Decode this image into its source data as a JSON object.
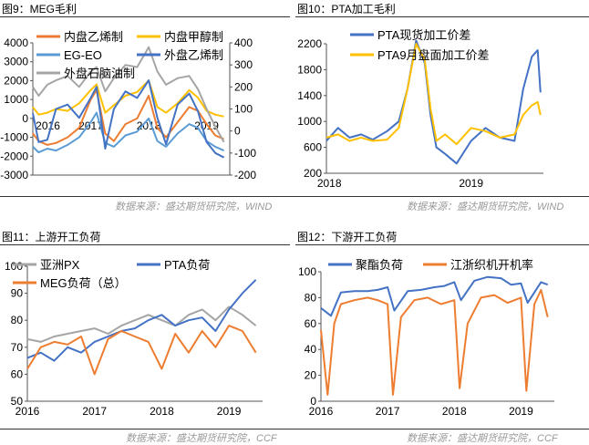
{
  "panels": [
    {
      "title": "图9：MEG毛利"
    },
    {
      "title": "图10：PTA加工毛利"
    },
    {
      "title": "图11：上游开工负荷"
    },
    {
      "title": "图12：下游开工负荷"
    }
  ],
  "sources": {
    "top": "数据来源：盛达期货研究院，WIND",
    "bottom": "数据来源：盛达期货研究院，CCF"
  },
  "chart_data": [
    {
      "type": "line",
      "title": "",
      "xlabel": "",
      "ylabel": "",
      "x_ticks": [
        "2016",
        "2017",
        "2018",
        "2019"
      ],
      "y_left": {
        "min": -3000,
        "max": 4000,
        "ticks": [
          -3000,
          -2000,
          -1000,
          0,
          1000,
          2000,
          3000,
          4000
        ]
      },
      "y_right": {
        "min": -200,
        "max": 400,
        "ticks": [
          -200,
          -100,
          0,
          100,
          200,
          300,
          400
        ]
      },
      "legend": "top",
      "series": [
        {
          "name": "内盘乙烯制",
          "color": "#ed7d31",
          "axis": "left",
          "x": [
            2016.0,
            2016.1,
            2016.25,
            2016.4,
            2016.6,
            2016.8,
            2017.0,
            2017.1,
            2017.25,
            2017.4,
            2017.6,
            2017.8,
            2018.0,
            2018.15,
            2018.3,
            2018.5,
            2018.7,
            2018.85,
            2019.0,
            2019.15,
            2019.3
          ],
          "values": [
            -800,
            -1200,
            -1400,
            -1300,
            -1000,
            -500,
            1000,
            1500,
            -800,
            -1200,
            -300,
            0,
            1200,
            -500,
            -1000,
            -200,
            600,
            400,
            -300,
            -900,
            -1100
          ]
        },
        {
          "name": "内盘甲醇制",
          "color": "#ffc000",
          "axis": "left",
          "x": [
            2016.0,
            2016.1,
            2016.25,
            2016.4,
            2016.6,
            2016.8,
            2017.0,
            2017.1,
            2017.25,
            2017.4,
            2017.6,
            2017.8,
            2018.0,
            2018.15,
            2018.3,
            2018.5,
            2018.7,
            2018.85,
            2019.0,
            2019.15,
            2019.3
          ],
          "values": [
            600,
            200,
            300,
            500,
            400,
            800,
            1500,
            1800,
            300,
            700,
            1200,
            1400,
            2000,
            600,
            300,
            800,
            1500,
            1100,
            400,
            200,
            100
          ]
        },
        {
          "name": "EG-EO",
          "color": "#5b9bd5",
          "axis": "left",
          "x": [
            2016.0,
            2016.1,
            2016.25,
            2016.4,
            2016.6,
            2016.8,
            2017.0,
            2017.1,
            2017.25,
            2017.4,
            2017.6,
            2017.8,
            2018.0,
            2018.15,
            2018.3,
            2018.5,
            2018.7,
            2018.85,
            2019.0,
            2019.15,
            2019.3
          ],
          "values": [
            -1500,
            -1800,
            -1600,
            -1700,
            -1400,
            -1000,
            -200,
            300,
            -1300,
            -1500,
            -900,
            -700,
            0,
            -1200,
            -1500,
            -800,
            -300,
            -500,
            -1200,
            -1500,
            -1700
          ]
        },
        {
          "name": "外盘乙烯制",
          "color": "#4472c4",
          "axis": "right",
          "x": [
            2016.0,
            2016.1,
            2016.25,
            2016.4,
            2016.6,
            2016.8,
            2017.0,
            2017.1,
            2017.25,
            2017.4,
            2017.6,
            2017.8,
            2018.0,
            2018.15,
            2018.3,
            2018.5,
            2018.7,
            2018.85,
            2019.0,
            2019.15,
            2019.3
          ],
          "values": [
            80,
            -50,
            -40,
            100,
            120,
            60,
            150,
            200,
            -80,
            100,
            180,
            150,
            230,
            60,
            -60,
            120,
            170,
            90,
            -50,
            -100,
            -120
          ]
        },
        {
          "name": "外盘石脑油制",
          "color": "#a5a5a5",
          "axis": "right",
          "x": [
            2016.0,
            2016.1,
            2016.25,
            2016.4,
            2016.6,
            2016.8,
            2017.0,
            2017.1,
            2017.25,
            2017.4,
            2017.6,
            2017.8,
            2018.0,
            2018.15,
            2018.3,
            2018.5,
            2018.7,
            2018.85,
            2019.0,
            2019.15,
            2019.3
          ],
          "values": [
            200,
            160,
            210,
            230,
            250,
            200,
            270,
            290,
            180,
            240,
            300,
            290,
            380,
            270,
            210,
            240,
            250,
            190,
            100,
            20,
            -50
          ]
        }
      ]
    },
    {
      "type": "line",
      "title": "",
      "xlabel": "",
      "ylabel": "",
      "x_ticks": [
        "2018",
        "2019"
      ],
      "y": {
        "min": 200,
        "max": 2200,
        "ticks": [
          200,
          600,
          1000,
          1400,
          1800,
          2200
        ]
      },
      "legend": "top",
      "series": [
        {
          "name": "PTA现货加工价差",
          "color": "#4472c4",
          "x": [
            2018.0,
            2018.08,
            2018.16,
            2018.24,
            2018.32,
            2018.42,
            2018.5,
            2018.56,
            2018.62,
            2018.68,
            2018.72,
            2018.76,
            2018.82,
            2018.9,
            2019.0,
            2019.1,
            2019.2,
            2019.3,
            2019.36,
            2019.42,
            2019.46,
            2019.48
          ],
          "values": [
            700,
            900,
            750,
            800,
            720,
            850,
            1000,
            1500,
            2250,
            1900,
            1100,
            600,
            500,
            350,
            700,
            900,
            750,
            700,
            1500,
            2000,
            2100,
            1450
          ]
        },
        {
          "name": "PTA9月盘面加工价差",
          "color": "#ffc000",
          "x": [
            2018.0,
            2018.08,
            2018.16,
            2018.24,
            2018.32,
            2018.42,
            2018.5,
            2018.56,
            2018.62,
            2018.68,
            2018.72,
            2018.76,
            2018.82,
            2018.9,
            2019.0,
            2019.1,
            2019.2,
            2019.3,
            2019.36,
            2019.42,
            2019.46,
            2019.48
          ],
          "values": [
            750,
            800,
            700,
            750,
            700,
            720,
            900,
            1500,
            2200,
            1950,
            1200,
            700,
            800,
            650,
            900,
            850,
            750,
            800,
            1100,
            1250,
            1300,
            1100
          ]
        }
      ]
    },
    {
      "type": "line",
      "title": "",
      "xlabel": "",
      "ylabel": "",
      "x_ticks": [
        "2016",
        "2017",
        "2018",
        "2019"
      ],
      "y": {
        "min": 50,
        "max": 100,
        "ticks": [
          50,
          60,
          70,
          80,
          90,
          100
        ]
      },
      "legend": "top",
      "series": [
        {
          "name": "亚洲PX",
          "color": "#a5a5a5",
          "x": [
            2016.0,
            2016.2,
            2016.4,
            2016.6,
            2016.8,
            2017.0,
            2017.2,
            2017.4,
            2017.6,
            2017.8,
            2018.0,
            2018.2,
            2018.4,
            2018.6,
            2018.8,
            2019.0,
            2019.2,
            2019.4
          ],
          "values": [
            73,
            72,
            74,
            75,
            76,
            77,
            75,
            78,
            80,
            82,
            80,
            78,
            82,
            84,
            80,
            85,
            82,
            78
          ]
        },
        {
          "name": "PTA负荷",
          "color": "#4472c4",
          "x": [
            2016.0,
            2016.2,
            2016.4,
            2016.6,
            2016.8,
            2017.0,
            2017.2,
            2017.4,
            2017.6,
            2017.8,
            2018.0,
            2018.2,
            2018.4,
            2018.6,
            2018.8,
            2019.0,
            2019.2,
            2019.4
          ],
          "values": [
            66,
            68,
            65,
            70,
            68,
            72,
            74,
            76,
            77,
            80,
            82,
            78,
            80,
            81,
            76,
            84,
            90,
            95
          ]
        },
        {
          "name": "MEG负荷（总）",
          "color": "#ed7d31",
          "x": [
            2016.0,
            2016.2,
            2016.4,
            2016.6,
            2016.8,
            2017.0,
            2017.2,
            2017.4,
            2017.6,
            2017.8,
            2018.0,
            2018.2,
            2018.4,
            2018.6,
            2018.8,
            2019.0,
            2019.2,
            2019.4
          ],
          "values": [
            62,
            70,
            72,
            71,
            74,
            60,
            73,
            76,
            74,
            72,
            62,
            75,
            68,
            76,
            70,
            78,
            76,
            68
          ]
        }
      ]
    },
    {
      "type": "line",
      "title": "",
      "xlabel": "",
      "ylabel": "",
      "x_ticks": [
        "2016",
        "2017",
        "2018",
        "2019"
      ],
      "y": {
        "min": 0,
        "max": 100,
        "ticks": [
          0,
          20,
          40,
          60,
          80,
          100
        ]
      },
      "legend": "top",
      "series": [
        {
          "name": "聚酯负荷",
          "color": "#4472c4",
          "x": [
            2016.0,
            2016.15,
            2016.3,
            2016.5,
            2016.7,
            2016.85,
            2017.0,
            2017.1,
            2017.3,
            2017.5,
            2017.7,
            2017.85,
            2018.0,
            2018.1,
            2018.3,
            2018.5,
            2018.7,
            2018.85,
            2019.0,
            2019.1,
            2019.3,
            2019.4
          ],
          "values": [
            72,
            66,
            84,
            85,
            85,
            86,
            88,
            70,
            85,
            86,
            88,
            89,
            92,
            78,
            93,
            96,
            95,
            90,
            91,
            76,
            92,
            90
          ]
        },
        {
          "name": "江浙织机开机率",
          "color": "#ed7d31",
          "x": [
            2016.0,
            2016.1,
            2016.2,
            2016.3,
            2016.5,
            2016.7,
            2016.85,
            2017.0,
            2017.08,
            2017.2,
            2017.4,
            2017.6,
            2017.8,
            2018.0,
            2018.08,
            2018.2,
            2018.4,
            2018.6,
            2018.8,
            2019.0,
            2019.08,
            2019.2,
            2019.3,
            2019.4
          ],
          "values": [
            55,
            5,
            60,
            75,
            78,
            80,
            78,
            75,
            5,
            65,
            78,
            80,
            75,
            78,
            10,
            60,
            80,
            82,
            76,
            80,
            8,
            75,
            86,
            65
          ]
        }
      ]
    }
  ]
}
